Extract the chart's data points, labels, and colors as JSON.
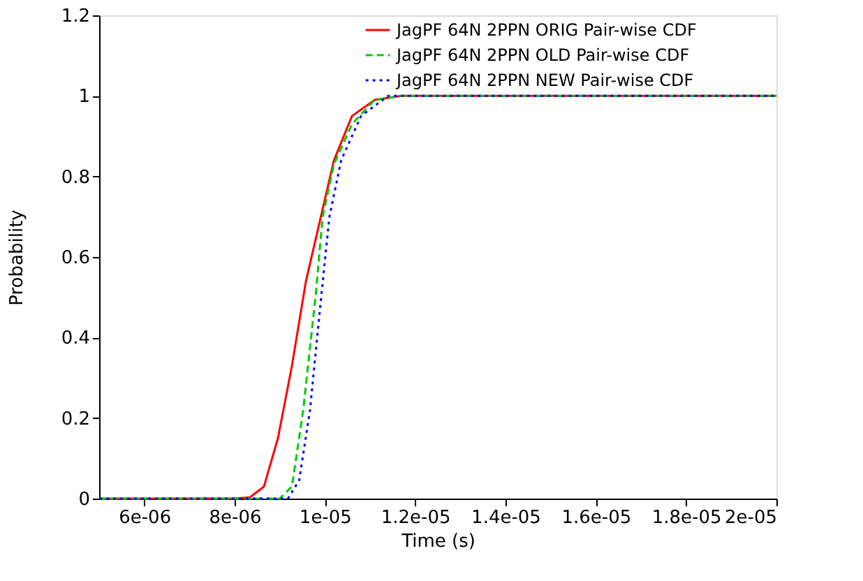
{
  "chart_data": {
    "type": "line",
    "xlabel": "Time (s)",
    "ylabel": "Probability",
    "xlim": [
      5e-06,
      2e-05
    ],
    "ylim": [
      0,
      1.2
    ],
    "xticks": [
      {
        "value": 6e-06,
        "label": "6e-06"
      },
      {
        "value": 8e-06,
        "label": "8e-06"
      },
      {
        "value": 1e-05,
        "label": "1e-05"
      },
      {
        "value": 1.2e-05,
        "label": "1.2e-05"
      },
      {
        "value": 1.4e-05,
        "label": "1.4e-05"
      },
      {
        "value": 1.6e-05,
        "label": "1.6e-05"
      },
      {
        "value": 1.8e-05,
        "label": "1.8e-05"
      },
      {
        "value": 2e-05,
        "label": "2e-05"
      }
    ],
    "yticks": [
      0,
      0.2,
      0.4,
      0.6,
      0.8,
      1,
      1.2
    ],
    "grid": false,
    "legend": "top right",
    "marker": "none",
    "series": [
      {
        "name": "JagPF 64N 2PPN ORIG Pair-wise CDF",
        "color": "#ff0000",
        "line_style": "solid",
        "x": [
          5e-06,
          8e-06,
          8.34e-06,
          8.65e-06,
          8.96e-06,
          9.27e-06,
          9.58e-06,
          9.89e-06,
          1.02e-05,
          1.06e-05,
          1.11e-05,
          1.17e-05,
          2e-05
        ],
        "values": [
          0,
          0,
          0.003,
          0.03,
          0.15,
          0.33,
          0.54,
          0.69,
          0.84,
          0.95,
          0.99,
          1,
          1
        ]
      },
      {
        "name": "JagPF 64N 2PPN OLD Pair-wise CDF",
        "color": "#00cc00",
        "line_style": "dashed",
        "x": [
          5e-06,
          9e-06,
          9.27e-06,
          9.52e-06,
          9.8e-06,
          9.95e-06,
          1.02e-05,
          1.06e-05,
          1.11e-05,
          1.17e-05,
          2e-05
        ],
        "values": [
          0,
          0,
          0.03,
          0.22,
          0.51,
          0.7,
          0.83,
          0.93,
          0.99,
          1,
          1
        ]
      },
      {
        "name": "JagPF 64N 2PPN NEW Pair-wise CDF",
        "color": "#0000ff",
        "line_style": "dotted",
        "x": [
          5e-06,
          9.18e-06,
          9.43e-06,
          9.67e-06,
          9.89e-06,
          1.01e-05,
          1.036e-05,
          1.08e-05,
          1.14e-05,
          2e-05
        ],
        "values": [
          0,
          0,
          0.045,
          0.22,
          0.47,
          0.7,
          0.84,
          0.95,
          1,
          1
        ]
      }
    ]
  }
}
